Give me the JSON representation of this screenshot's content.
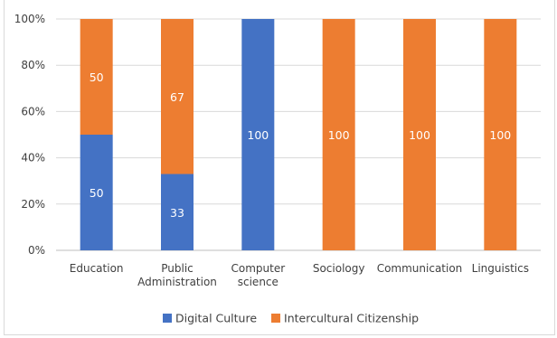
{
  "chart_data": {
    "type": "bar",
    "stacked": true,
    "percent_stacked": true,
    "categories": [
      [
        "Education"
      ],
      [
        "Public",
        "Administration"
      ],
      [
        "Computer",
        "science"
      ],
      [
        "Sociology"
      ],
      [
        "Communication"
      ],
      [
        "Linguistics"
      ]
    ],
    "series": [
      {
        "name": "Digital Culture",
        "color": "#4472c4",
        "values": [
          50,
          33,
          100,
          0,
          0,
          0
        ]
      },
      {
        "name": "Intercultural Citizenship",
        "color": "#ed7d31",
        "values": [
          50,
          67,
          0,
          100,
          100,
          100
        ]
      }
    ],
    "yticks": [
      "0%",
      "20%",
      "40%",
      "60%",
      "80%",
      "100%"
    ],
    "ylim": [
      0,
      100
    ],
    "grid": true,
    "legend": "bottom"
  }
}
